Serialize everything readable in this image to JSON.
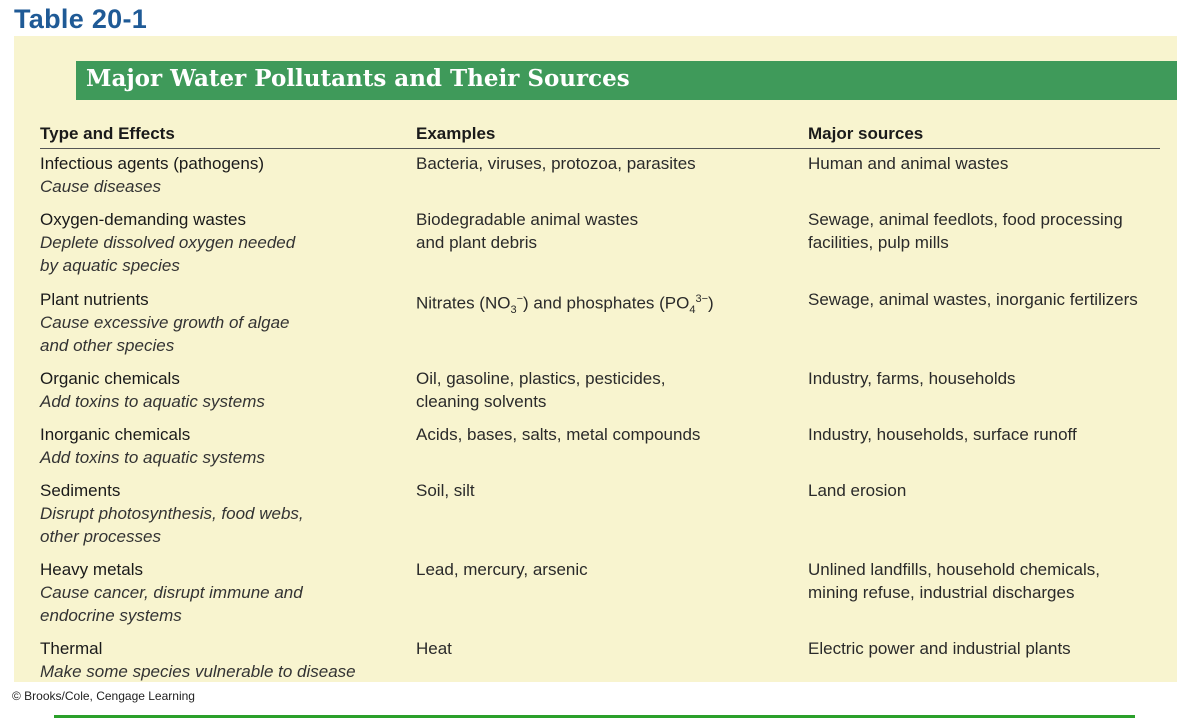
{
  "table_label": "Table 20-1",
  "title": "Major Water Pollutants and Their Sources",
  "headers": [
    "Type and Effects",
    "Examples",
    "Major sources"
  ],
  "rows": [
    {
      "type": "Infectious agents (pathogens)",
      "effect": [
        "Cause diseases"
      ],
      "examples": [
        "Bacteria, viruses, protozoa, parasites"
      ],
      "sources": [
        "Human and animal wastes"
      ]
    },
    {
      "type": "Oxygen-demanding wastes",
      "effect": [
        "Deplete dissolved oxygen needed",
        "by aquatic species"
      ],
      "examples": [
        "Biodegradable animal wastes",
        "and plant debris"
      ],
      "sources": [
        "Sewage, animal feedlots, food processing",
        "facilities, pulp mills"
      ]
    },
    {
      "type": "Plant nutrients",
      "effect": [
        "Cause excessive growth of algae",
        "and other species"
      ],
      "examples_parts": {
        "a": "Nitrates (NO",
        "a_sub": "3",
        "a_sup": "−",
        "b": ") and phosphates (PO",
        "b_sub": "4",
        "b_sup": "3−",
        "c": ")"
      },
      "sources": [
        "Sewage, animal wastes, inorganic fertilizers"
      ]
    },
    {
      "type": "Organic chemicals",
      "effect": [
        "Add toxins to aquatic systems"
      ],
      "examples": [
        "Oil, gasoline, plastics, pesticides,",
        "cleaning solvents"
      ],
      "sources": [
        "Industry, farms, households"
      ]
    },
    {
      "type": "Inorganic chemicals",
      "effect": [
        "Add toxins to aquatic systems"
      ],
      "examples": [
        "Acids, bases, salts, metal compounds"
      ],
      "sources": [
        "Industry, households, surface runoff"
      ]
    },
    {
      "type": "Sediments",
      "effect": [
        "Disrupt photosynthesis, food webs,",
        "other processes"
      ],
      "examples": [
        "Soil, silt"
      ],
      "sources": [
        "Land erosion"
      ]
    },
    {
      "type": "Heavy metals",
      "effect": [
        "Cause cancer, disrupt immune and",
        "endocrine systems"
      ],
      "examples": [
        "Lead, mercury, arsenic"
      ],
      "sources": [
        "Unlined landfills, household chemicals,",
        "mining refuse, industrial discharges"
      ]
    },
    {
      "type": "Thermal",
      "effect": [
        "Make some species vulnerable to disease"
      ],
      "examples": [
        "Heat"
      ],
      "sources": [
        "Electric power and industrial plants"
      ]
    }
  ],
  "credit": "© Brooks/Cole, Cengage Learning",
  "colors": {
    "label": "#1f5a96",
    "banner": "#3f9a5a",
    "panel": "#f8f4cf",
    "bottom_rule": "#2aa02a"
  }
}
